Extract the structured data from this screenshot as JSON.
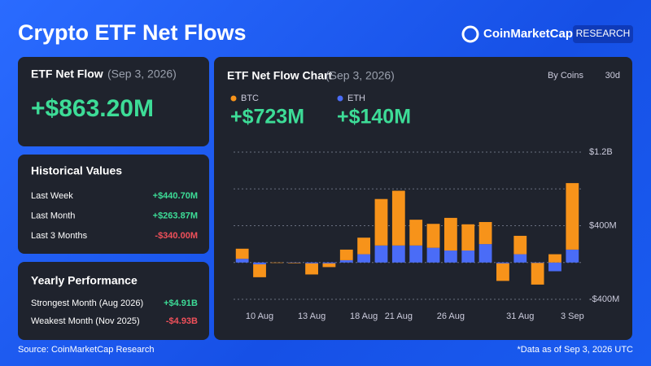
{
  "header": {
    "title": "Crypto ETF Net Flows",
    "brand": "CoinMarketCap",
    "badge": "RESEARCH"
  },
  "net_flow": {
    "label": "ETF Net Flow",
    "date": "(Sep 3, 2026)",
    "value": "+$863.20M"
  },
  "historical": {
    "title": "Historical Values",
    "rows": [
      [
        "Last Week",
        "+$440.70M"
      ],
      [
        "Last Month",
        "+$263.87M"
      ],
      [
        "Last 3 Months",
        "-$340.00M"
      ]
    ]
  },
  "yearly": {
    "title": "Yearly Performance",
    "rows": [
      [
        "Strongest Month (Aug 2026)",
        "+$4.91B"
      ],
      [
        "Weakest Month (Nov 2025)",
        "-$4.93B"
      ]
    ]
  },
  "footer": {
    "source": "Source: CoinMarketCap Research",
    "note": "*Data as of Sep 3, 2026 UTC"
  },
  "chart_data": {
    "type": "bar",
    "stacked": true,
    "title": "ETF Net Flow Chart",
    "subtitle": "(Sep 3, 2026)",
    "controls": [
      "By Coins",
      "30d"
    ],
    "categories": [
      null,
      "10 Aug",
      null,
      null,
      "13 Aug",
      null,
      null,
      "18 Aug",
      null,
      "21 Aug",
      null,
      null,
      "26 Aug",
      null,
      null,
      null,
      "31 Aug",
      null,
      null,
      "3 Sep"
    ],
    "series": [
      {
        "name": "ETH",
        "color": "#4a6cf7",
        "total_label": "+$140M",
        "values": [
          40,
          -20,
          0,
          -3,
          -10,
          -10,
          25,
          90,
          185,
          185,
          185,
          160,
          130,
          130,
          200,
          -10,
          90,
          -5,
          -95,
          140
        ]
      },
      {
        "name": "BTC",
        "color": "#f7931a",
        "total_label": "+$723M",
        "values": [
          110,
          -140,
          -5,
          -5,
          -120,
          -40,
          115,
          180,
          505,
          595,
          280,
          260,
          355,
          285,
          240,
          -190,
          200,
          -235,
          90,
          723
        ]
      }
    ],
    "ylim": [
      -400,
      1200
    ],
    "yticks": [
      {
        "value": 1200,
        "label": "$1.2B"
      },
      {
        "value": 400,
        "label": "$400M"
      },
      {
        "value": -400,
        "label": "-$400M"
      }
    ],
    "grid": true
  }
}
